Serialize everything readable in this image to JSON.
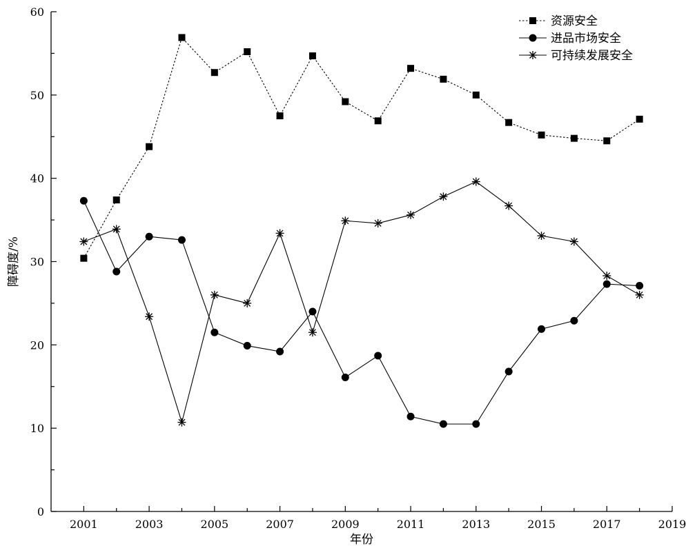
{
  "chart_data": {
    "type": "line",
    "xlabel": "年份",
    "ylabel": "障碍度/%",
    "xlim": [
      2000,
      2019
    ],
    "ylim": [
      0,
      60
    ],
    "x_ticks": [
      2001,
      2003,
      2005,
      2007,
      2009,
      2011,
      2013,
      2015,
      2017,
      2019
    ],
    "y_ticks": [
      0,
      10,
      20,
      30,
      40,
      50,
      60
    ],
    "grid": false,
    "legend_position": "top-right",
    "x": [
      2001,
      2002,
      2003,
      2004,
      2005,
      2006,
      2007,
      2008,
      2009,
      2010,
      2011,
      2012,
      2013,
      2014,
      2015,
      2016,
      2017,
      2018
    ],
    "series": [
      {
        "name": "资源安全",
        "marker": "square",
        "line_style": "dotted",
        "values": [
          30.4,
          37.4,
          43.8,
          56.9,
          52.7,
          55.2,
          47.5,
          54.7,
          49.2,
          46.9,
          53.2,
          51.9,
          50.0,
          46.7,
          45.2,
          44.8,
          44.5,
          47.1
        ]
      },
      {
        "name": "进品市场安全",
        "marker": "circle",
        "line_style": "solid",
        "values": [
          37.3,
          28.8,
          33.0,
          32.6,
          21.5,
          19.9,
          19.2,
          24.0,
          16.1,
          18.7,
          11.4,
          10.5,
          10.5,
          16.8,
          21.9,
          22.9,
          27.3,
          27.1
        ]
      },
      {
        "name": "可持续发展安全",
        "marker": "star",
        "line_style": "solid",
        "values": [
          32.4,
          33.9,
          23.4,
          10.7,
          26.0,
          25.0,
          33.4,
          21.5,
          34.9,
          34.6,
          35.6,
          37.8,
          39.6,
          36.7,
          33.1,
          32.4,
          28.3,
          26.0
        ]
      }
    ]
  }
}
